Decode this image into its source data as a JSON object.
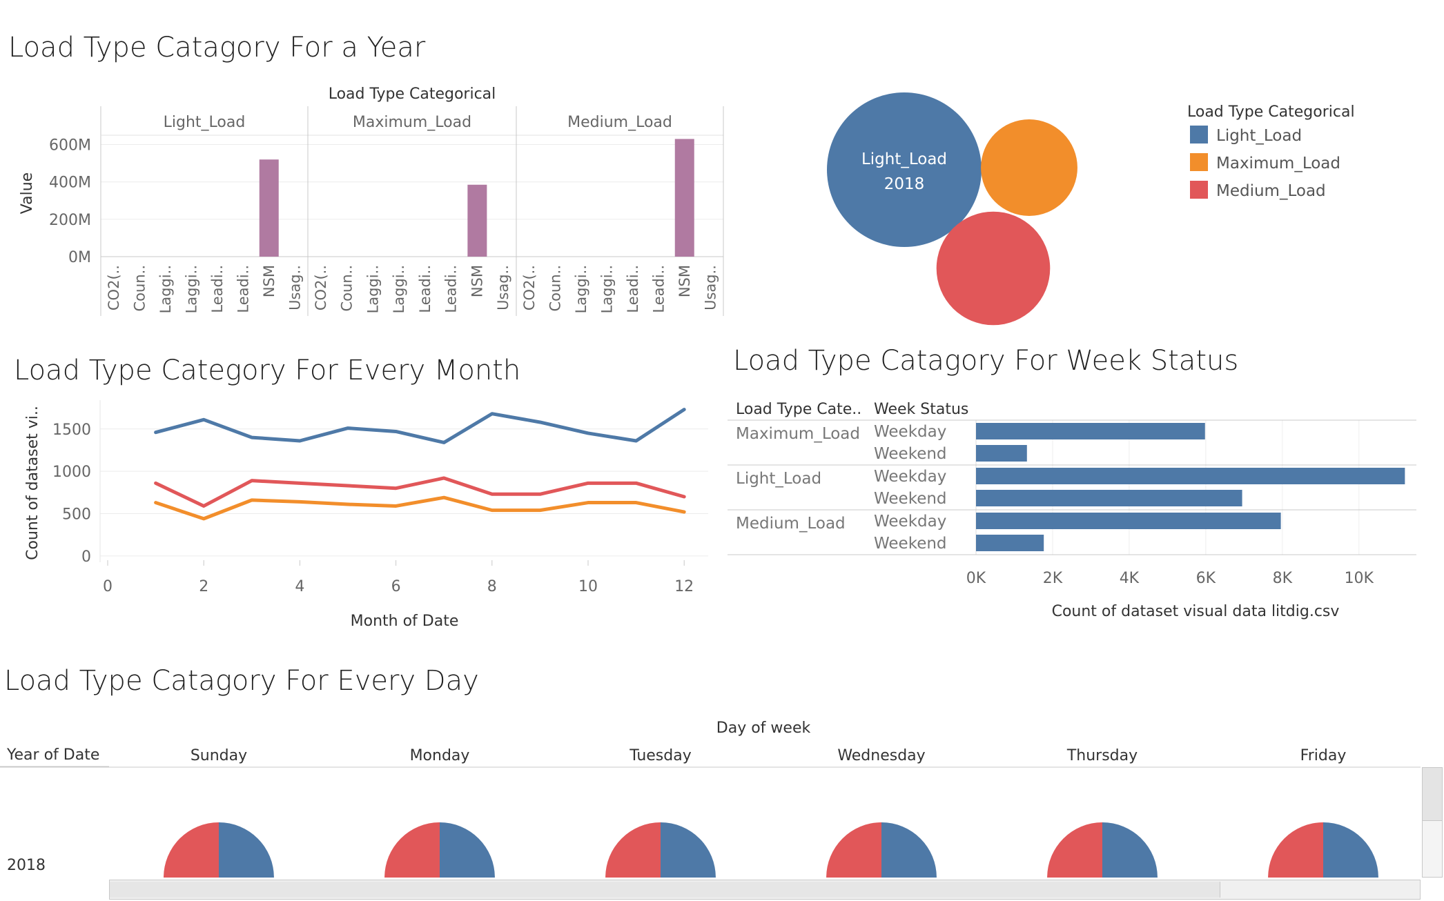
{
  "titles": {
    "year": "Load Type Catagory For a Year",
    "month": "Load Type Category For Every Month",
    "week": "Load Type Catagory For Week Status",
    "day": "Load Type Catagory For Every Day"
  },
  "colors": {
    "Light_Load": "#4e79a7",
    "Maximum_Load": "#f28e2b",
    "Medium_Load": "#e15759",
    "bar_purple": "#b07aa1"
  },
  "chart_data": [
    {
      "id": "year-bars",
      "type": "bar",
      "facet_title": "Load Type Categorical",
      "ylabel": "Value",
      "ylim": [
        0,
        650000000
      ],
      "yticks": [
        {
          "v": 0,
          "label": "0M"
        },
        {
          "v": 200000000,
          "label": "200M"
        },
        {
          "v": 400000000,
          "label": "400M"
        },
        {
          "v": 600000000,
          "label": "600M"
        }
      ],
      "categories": [
        "CO2(..",
        "Coun..",
        "Laggi..",
        "Laggi..",
        "Leadi..",
        "Leadi..",
        "NSM",
        "Usag.."
      ],
      "facets": [
        {
          "name": "Light_Load",
          "values": [
            0,
            0,
            0,
            0,
            0,
            0,
            520000000,
            0
          ]
        },
        {
          "name": "Maximum_Load",
          "values": [
            0,
            0,
            0,
            0,
            0,
            0,
            385000000,
            0
          ]
        },
        {
          "name": "Medium_Load",
          "values": [
            0,
            0,
            0,
            0,
            0,
            0,
            630000000,
            0
          ]
        }
      ]
    },
    {
      "id": "year-bubbles",
      "type": "bubble",
      "legend_title": "Load Type Categorical",
      "center_label": [
        "Light_Load",
        "2018"
      ],
      "items": [
        {
          "name": "Light_Load",
          "size": 1.0
        },
        {
          "name": "Maximum_Load",
          "size": 0.39
        },
        {
          "name": "Medium_Load",
          "size": 0.54
        }
      ]
    },
    {
      "id": "month-lines",
      "type": "line",
      "xlabel": "Month of Date",
      "ylabel": "Count of dataset vi..",
      "xlim": [
        0,
        12.5
      ],
      "ylim": [
        -50,
        1800
      ],
      "xticks": [
        0,
        2,
        4,
        6,
        8,
        10,
        12
      ],
      "yticks": [
        0,
        500,
        1000,
        1500
      ],
      "x": [
        1,
        2,
        3,
        4,
        5,
        6,
        7,
        8,
        9,
        10,
        11,
        12
      ],
      "series": [
        {
          "name": "Light_Load",
          "values": [
            1460,
            1610,
            1400,
            1360,
            1510,
            1470,
            1340,
            1680,
            1580,
            1450,
            1360,
            1730
          ]
        },
        {
          "name": "Medium_Load",
          "values": [
            860,
            590,
            890,
            860,
            830,
            800,
            920,
            730,
            730,
            860,
            860,
            700
          ]
        },
        {
          "name": "Maximum_Load",
          "values": [
            630,
            440,
            660,
            640,
            610,
            590,
            690,
            540,
            540,
            630,
            630,
            520
          ]
        }
      ]
    },
    {
      "id": "week-bars",
      "type": "bar",
      "orientation": "horizontal",
      "col_headers": [
        "Load Type Cate..",
        "Week Status"
      ],
      "xlabel": "Count of dataset visual data litdig.csv",
      "xlim": [
        0,
        11500
      ],
      "xticks": [
        {
          "v": 0,
          "label": "0K"
        },
        {
          "v": 2000,
          "label": "2K"
        },
        {
          "v": 4000,
          "label": "4K"
        },
        {
          "v": 6000,
          "label": "6K"
        },
        {
          "v": 8000,
          "label": "8K"
        },
        {
          "v": 10000,
          "label": "10K"
        }
      ],
      "groups": [
        {
          "name": "Maximum_Load",
          "rows": [
            {
              "status": "Weekday",
              "value": 5980
            },
            {
              "status": "Weekend",
              "value": 1330
            }
          ]
        },
        {
          "name": "Light_Load",
          "rows": [
            {
              "status": "Weekday",
              "value": 11200
            },
            {
              "status": "Weekend",
              "value": 6950
            }
          ]
        },
        {
          "name": "Medium_Load",
          "rows": [
            {
              "status": "Weekday",
              "value": 7960
            },
            {
              "status": "Weekend",
              "value": 1770
            }
          ]
        }
      ]
    },
    {
      "id": "day-pies",
      "type": "pie",
      "col_title": "Day of week",
      "row_header": "Year of Date",
      "row_label": "2018",
      "days": [
        {
          "name": "Sunday",
          "slices": [
            {
              "name": "Light_Load",
              "value": 0.5
            },
            {
              "name": "Maximum_Load",
              "value": 0.075
            },
            {
              "name": "Medium_Load",
              "value": 0.1
            },
            {
              "name": "Medium_Load",
              "value": 0.075
            },
            {
              "name": "Medium_Load",
              "value": 0.25
            }
          ]
        },
        {
          "name": "Monday",
          "slices": [
            {
              "name": "Light_Load",
              "value": 0.5
            },
            {
              "name": "Medium_Load",
              "value": 0.5
            }
          ]
        },
        {
          "name": "Tuesday",
          "slices": [
            {
              "name": "Light_Load",
              "value": 0.5
            },
            {
              "name": "Medium_Load",
              "value": 0.5
            }
          ]
        },
        {
          "name": "Wednesday",
          "slices": [
            {
              "name": "Light_Load",
              "value": 0.5
            },
            {
              "name": "Medium_Load",
              "value": 0.5
            }
          ]
        },
        {
          "name": "Thursday",
          "slices": [
            {
              "name": "Light_Load",
              "value": 0.5
            },
            {
              "name": "Medium_Load",
              "value": 0.5
            }
          ]
        },
        {
          "name": "Friday",
          "slices": [
            {
              "name": "Light_Load",
              "value": 0.5
            },
            {
              "name": "Medium_Load",
              "value": 0.5
            }
          ]
        }
      ]
    }
  ]
}
